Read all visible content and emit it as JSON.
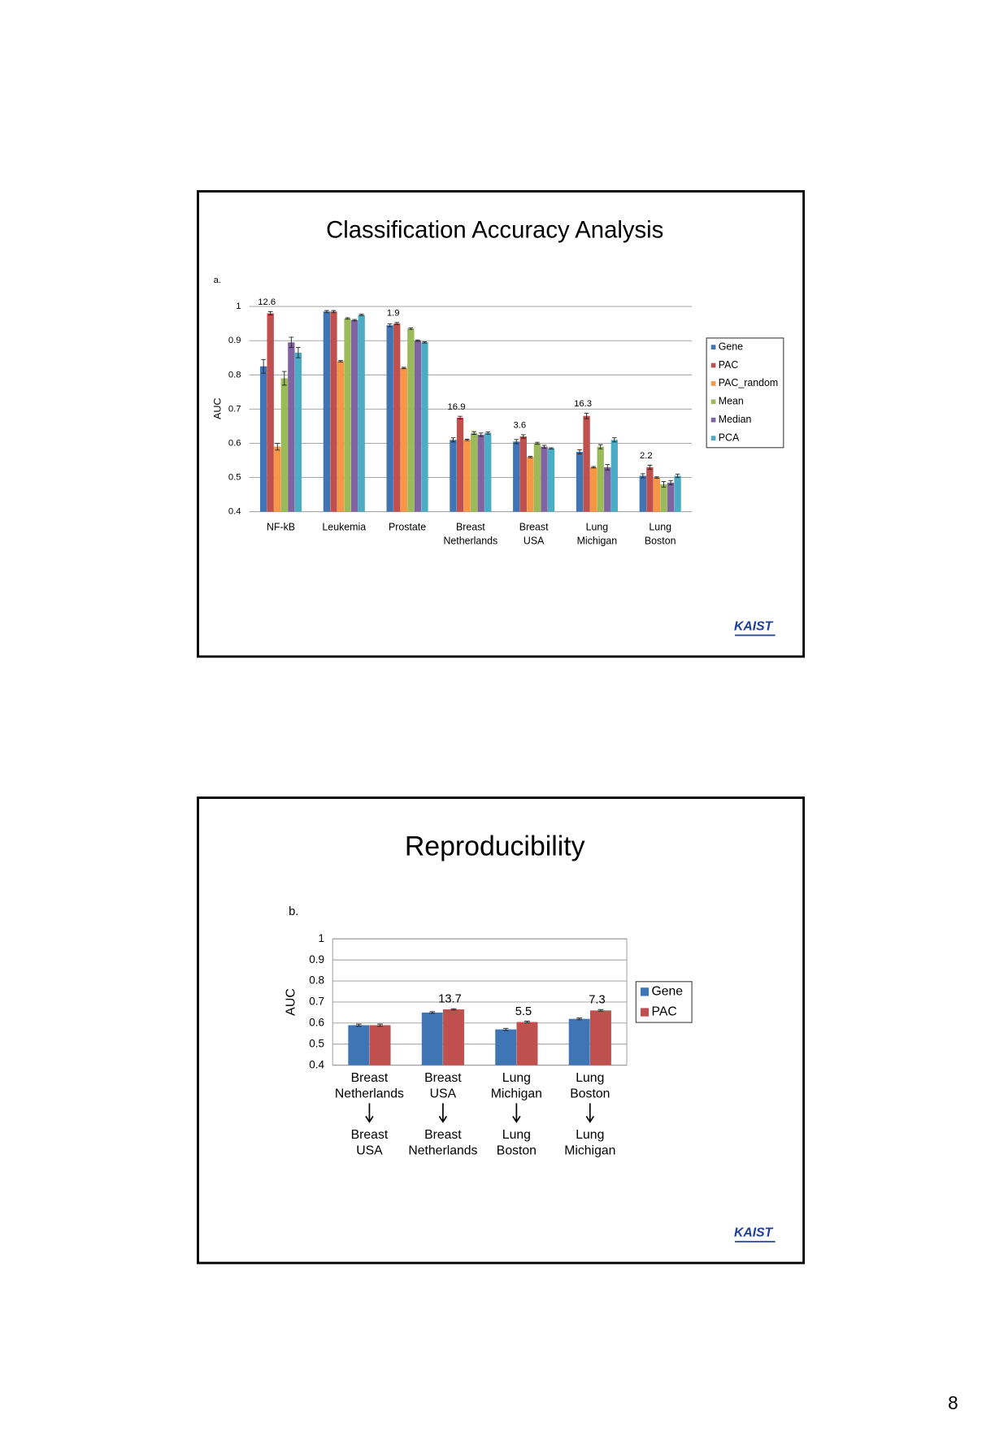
{
  "chart_data": [
    {
      "type": "bar",
      "title": "Classification Accuracy Analysis",
      "panel_label": "a.",
      "y_label": "AUC",
      "categories": [
        [
          "NF-kB"
        ],
        [
          "Leukemia"
        ],
        [
          "Prostate"
        ],
        [
          "Breast",
          "Netherlands"
        ],
        [
          "Breast",
          "USA"
        ],
        [
          "Lung",
          "Michigan"
        ],
        [
          "Lung",
          "Boston"
        ]
      ],
      "series": [
        {
          "name": "Gene",
          "color": "#3f74b5",
          "values": [
            0.825,
            0.985,
            0.945,
            0.61,
            0.605,
            0.575,
            0.505
          ],
          "errors": [
            0.02,
            0.003,
            0.004,
            0.006,
            0.006,
            0.006,
            0.006
          ]
        },
        {
          "name": "PAC",
          "color": "#c0504d",
          "values": [
            0.98,
            0.985,
            0.95,
            0.675,
            0.62,
            0.68,
            0.53
          ],
          "errors": [
            0.005,
            0.003,
            0.003,
            0.004,
            0.005,
            0.008,
            0.006
          ]
        },
        {
          "name": "PAC_random",
          "color": "#f79646",
          "values": [
            0.59,
            0.84,
            0.82,
            0.61,
            0.56,
            0.53,
            0.5
          ],
          "errors": [
            0.01,
            0.002,
            0.002,
            0.002,
            0.002,
            0.002,
            0.002
          ]
        },
        {
          "name": "Mean",
          "color": "#9bbb59",
          "values": [
            0.79,
            0.965,
            0.935,
            0.63,
            0.6,
            0.59,
            0.48
          ],
          "errors": [
            0.02,
            0.002,
            0.002,
            0.004,
            0.003,
            0.006,
            0.008
          ]
        },
        {
          "name": "Median",
          "color": "#8064a2",
          "values": [
            0.895,
            0.96,
            0.9,
            0.625,
            0.59,
            0.53,
            0.485
          ],
          "errors": [
            0.015,
            0.002,
            0.002,
            0.005,
            0.004,
            0.008,
            0.006
          ]
        },
        {
          "name": "PCA",
          "color": "#4bacc6",
          "values": [
            0.865,
            0.975,
            0.895,
            0.63,
            0.585,
            0.61,
            0.505
          ],
          "errors": [
            0.015,
            0.002,
            0.002,
            0.003,
            0.002,
            0.006,
            0.005
          ]
        }
      ],
      "annotations": [
        12.6,
        null,
        1.9,
        16.9,
        3.6,
        16.3,
        2.2
      ],
      "ylim": [
        0.4,
        1
      ],
      "yticks": [
        0.4,
        0.5,
        0.6,
        0.7,
        0.8,
        0.9,
        1
      ],
      "grid": true
    },
    {
      "type": "bar",
      "title": "Reproducibility",
      "panel_label": "b.",
      "y_label": "AUC",
      "categories": [
        [
          "Breast",
          "Netherlands",
          "Breast",
          "USA"
        ],
        [
          "Breast",
          "USA",
          "Breast",
          "Netherlands"
        ],
        [
          "Lung",
          "Michigan",
          "Lung",
          "Boston"
        ],
        [
          "Lung",
          "Boston",
          "Lung",
          "Michigan"
        ]
      ],
      "series": [
        {
          "name": "Gene",
          "color": "#3f74b5",
          "values": [
            0.59,
            0.65,
            0.57,
            0.62
          ],
          "errors": [
            0.005,
            0.004,
            0.005,
            0.004
          ]
        },
        {
          "name": "PAC",
          "color": "#c0504d",
          "values": [
            0.59,
            0.665,
            0.605,
            0.66
          ],
          "errors": [
            0.005,
            0.003,
            0.004,
            0.004
          ]
        }
      ],
      "annotations": [
        null,
        13.7,
        5.5,
        7.3
      ],
      "ylim": [
        0.4,
        1
      ],
      "yticks": [
        0.4,
        0.5,
        0.6,
        0.7,
        0.8,
        0.9,
        1
      ],
      "grid": true
    }
  ],
  "logos": [
    "KAIST",
    "KAIST"
  ],
  "page_number": 8
}
